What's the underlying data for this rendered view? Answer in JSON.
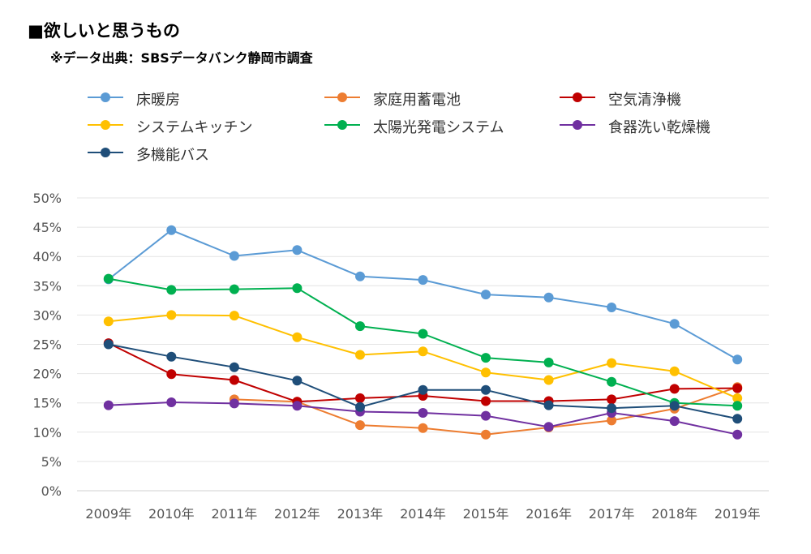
{
  "title": "■欲しいと思うもの",
  "subtitle": "※データ出典：SBSデータバンク静岡市調査",
  "chart_data": {
    "type": "line",
    "categories": [
      "2009年",
      "2010年",
      "2011年",
      "2012年",
      "2013年",
      "2014年",
      "2015年",
      "2016年",
      "2017年",
      "2018年",
      "2019年"
    ],
    "ylim": [
      0,
      0.5
    ],
    "ytick_labels": [
      "0%",
      "5%",
      "10%",
      "15%",
      "20%",
      "25%",
      "30%",
      "35%",
      "40%",
      "45%",
      "50%"
    ],
    "grid": true,
    "legend_position": "top",
    "series": [
      {
        "name": "床暖房",
        "color": "#5B9BD5",
        "values": [
          0.361,
          0.445,
          0.401,
          0.411,
          0.366,
          0.36,
          0.335,
          0.33,
          0.313,
          0.285,
          0.224
        ]
      },
      {
        "name": "家庭用蓄電池",
        "color": "#ED7D31",
        "values": [
          null,
          null,
          0.156,
          0.152,
          0.112,
          0.107,
          0.096,
          0.108,
          0.12,
          0.14,
          0.177
        ]
      },
      {
        "name": "空気清浄機",
        "color": "#C00000",
        "values": [
          0.252,
          0.199,
          0.189,
          0.152,
          0.158,
          0.162,
          0.153,
          0.153,
          0.156,
          0.174,
          0.175
        ]
      },
      {
        "name": "システムキッチン",
        "color": "#FFC000",
        "values": [
          0.289,
          0.3,
          0.299,
          0.262,
          0.232,
          0.238,
          0.202,
          0.189,
          0.218,
          0.204,
          0.158
        ]
      },
      {
        "name": "太陽光発電システム",
        "color": "#00B050",
        "values": [
          0.362,
          0.343,
          0.344,
          0.346,
          0.281,
          0.268,
          0.227,
          0.219,
          0.186,
          0.15,
          0.145
        ]
      },
      {
        "name": "食器洗い乾燥機",
        "color": "#7030A0",
        "values": [
          0.146,
          0.151,
          0.149,
          0.145,
          0.135,
          0.133,
          0.128,
          0.109,
          0.133,
          0.119,
          0.096
        ]
      },
      {
        "name": "多機能バス",
        "color": "#1F4E79",
        "values": [
          0.25,
          0.229,
          0.211,
          0.188,
          0.143,
          0.172,
          0.172,
          0.146,
          0.141,
          0.145,
          0.123
        ]
      }
    ]
  }
}
